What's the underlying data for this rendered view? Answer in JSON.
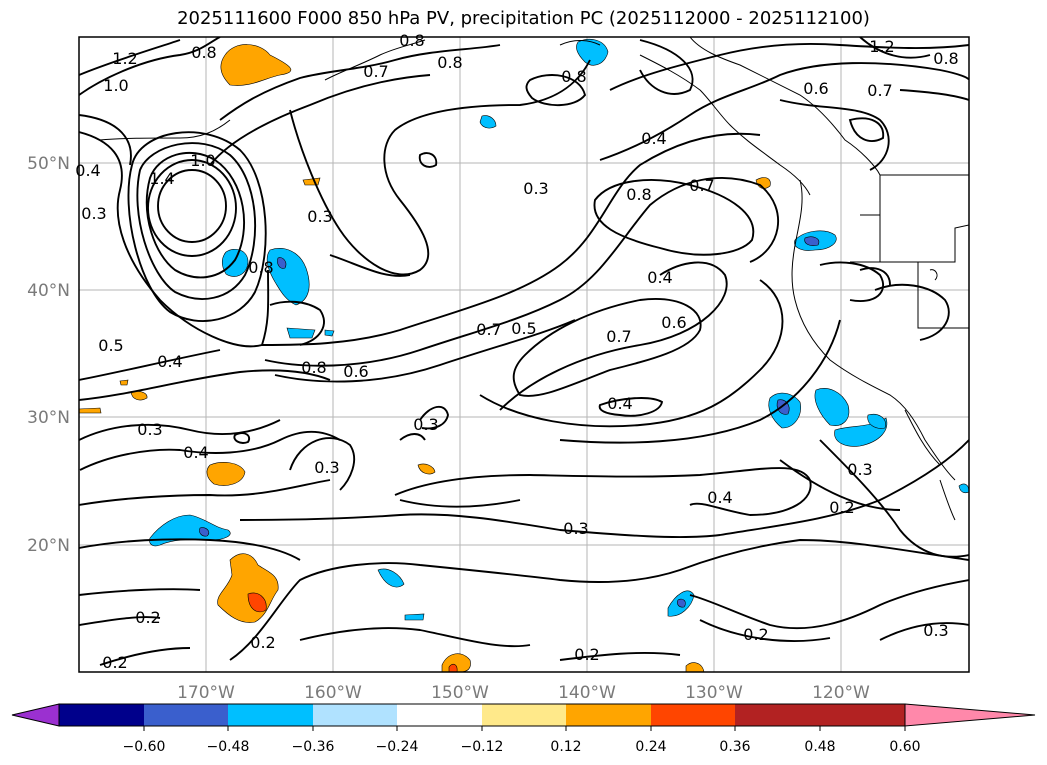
{
  "title": "2025111600 F000 850 hPa PV, precipitation PC (2025112000 - 2025112100)",
  "latitude_labels": [
    "50°N",
    "40°N",
    "30°N",
    "20°N"
  ],
  "longitude_labels": [
    "170°W",
    "160°W",
    "150°W",
    "140°W",
    "130°W",
    "120°W"
  ],
  "contour_labels": [
    "1.2",
    "0.8",
    "1.0",
    "0.7",
    "0.8",
    "0.8",
    "0.8",
    "1.2",
    "0.8",
    "0.6",
    "0.7",
    "1.0",
    "1.4",
    "0.4",
    "0.3",
    "0.3",
    "0.8",
    "0.4",
    "0.7",
    "0.3",
    "0.8",
    "0.4",
    "0.7",
    "0.5",
    "0.6",
    "0.5",
    "0.4",
    "0.8",
    "0.6",
    "0.7",
    "0.4",
    "0.3",
    "0.4",
    "0.3",
    "0.3",
    "0.4",
    "0.2",
    "0.3",
    "0.3",
    "0.2",
    "0.2",
    "0.2",
    "0.2",
    "0.2",
    "0.3"
  ],
  "colorbar": {
    "ticks": [
      "−0.60",
      "−0.48",
      "−0.36",
      "−0.24",
      "−0.12",
      "0.12",
      "0.24",
      "0.36",
      "0.48",
      "0.60"
    ],
    "colors": [
      "#9b30d0",
      "#00008b",
      "#3a5fcd",
      "#00bfff",
      "#b0e2ff",
      "#ffffff",
      "#ffe98a",
      "#ffa500",
      "#ff4500",
      "#b22222",
      "#ff88aa"
    ]
  }
}
